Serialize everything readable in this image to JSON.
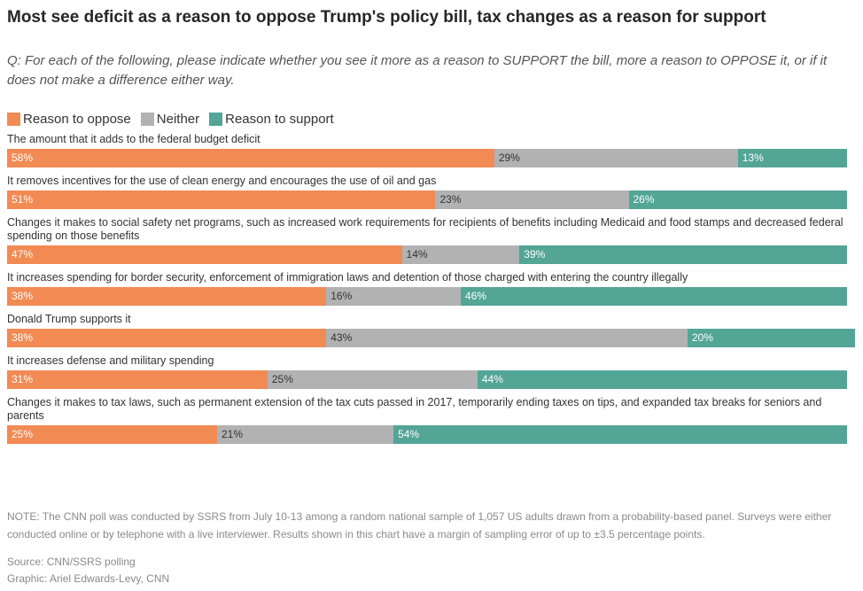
{
  "header": {
    "title": "Most see deficit as a reason to oppose Trump's policy bill, tax changes as a reason for support",
    "question": "Q: For each of the following, please indicate whether you see it more as a reason to SUPPORT the bill, more a reason to OPPOSE it, or if it does not make a difference either way."
  },
  "legend": [
    {
      "label": "Reason to oppose",
      "color": "#f28a54"
    },
    {
      "label": "Neither",
      "color": "#b2b2b2"
    },
    {
      "label": "Reason to support",
      "color": "#53a596"
    }
  ],
  "chart_data": {
    "type": "bar",
    "orientation": "horizontal-stacked",
    "unit": "%",
    "title": "Most see deficit as a reason to oppose Trump's policy bill, tax changes as a reason for support",
    "categories": [
      "The amount that it adds to the federal budget deficit",
      "It removes incentives for the use of clean energy and encourages the use of oil and gas",
      "Changes it makes to social safety net programs, such as increased work requirements for recipients of benefits including Medicaid and food stamps and decreased federal spending on those benefits",
      "It increases spending for border security, enforcement of immigration laws and detention of those charged with entering the country illegally",
      "Donald Trump supports it",
      "It increases defense and military spending",
      "Changes it makes to tax laws, such as permanent extension of the tax cuts passed in 2017, temporarily ending taxes on tips, and expanded tax breaks for seniors and parents"
    ],
    "series": [
      {
        "name": "Reason to oppose",
        "color": "#f28a54",
        "values": [
          58,
          51,
          47,
          38,
          38,
          31,
          25
        ]
      },
      {
        "name": "Neither",
        "color": "#b2b2b2",
        "values": [
          29,
          23,
          14,
          16,
          43,
          25,
          21
        ]
      },
      {
        "name": "Reason to support",
        "color": "#53a596",
        "values": [
          13,
          26,
          39,
          46,
          20,
          44,
          54
        ]
      }
    ]
  },
  "footer": {
    "note": "NOTE: The CNN poll was conducted by SSRS from July 10-13 among a random national sample of 1,057 US adults drawn from a probability-based panel. Surveys were either conducted online or by telephone with a live interviewer. Results shown in this chart have a margin of sampling error of up to ±3.5 percentage points.",
    "source": "Source: CNN/SSRS polling",
    "graphic": "Graphic: Ariel Edwards-Levy, CNN"
  }
}
